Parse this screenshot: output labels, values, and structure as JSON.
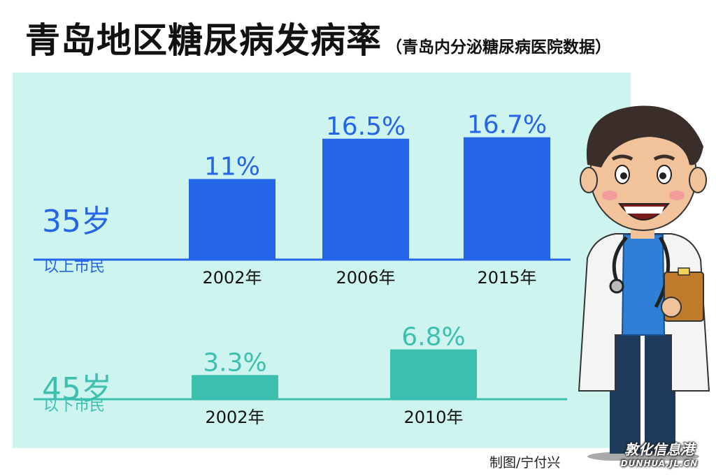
{
  "header": {
    "title": "青岛地区糖尿病发病率",
    "subtitle": "（青岛内分泌糖尿病医院数据）"
  },
  "credit": "制图/宁付兴",
  "watermark": {
    "name": "敦化信息港",
    "url": "DUNHUA.JL.CN"
  },
  "colors": {
    "panel": "#cdf4ee",
    "upper": "#2565e8",
    "lower": "#3dbfaf"
  },
  "chart_data": [
    {
      "type": "bar",
      "group_label": "35岁",
      "group_sublabel": "以上市民",
      "categories": [
        "2002年",
        "2006年",
        "2015年"
      ],
      "values": [
        11,
        16.5,
        16.7
      ],
      "value_labels": [
        "11%",
        "16.5%",
        "16.7%"
      ]
    },
    {
      "type": "bar",
      "group_label": "45岁",
      "group_sublabel": "以下市民",
      "categories": [
        "2002年",
        "2010年"
      ],
      "values": [
        3.3,
        6.8
      ],
      "value_labels": [
        "3.3%",
        "6.8%"
      ]
    }
  ]
}
